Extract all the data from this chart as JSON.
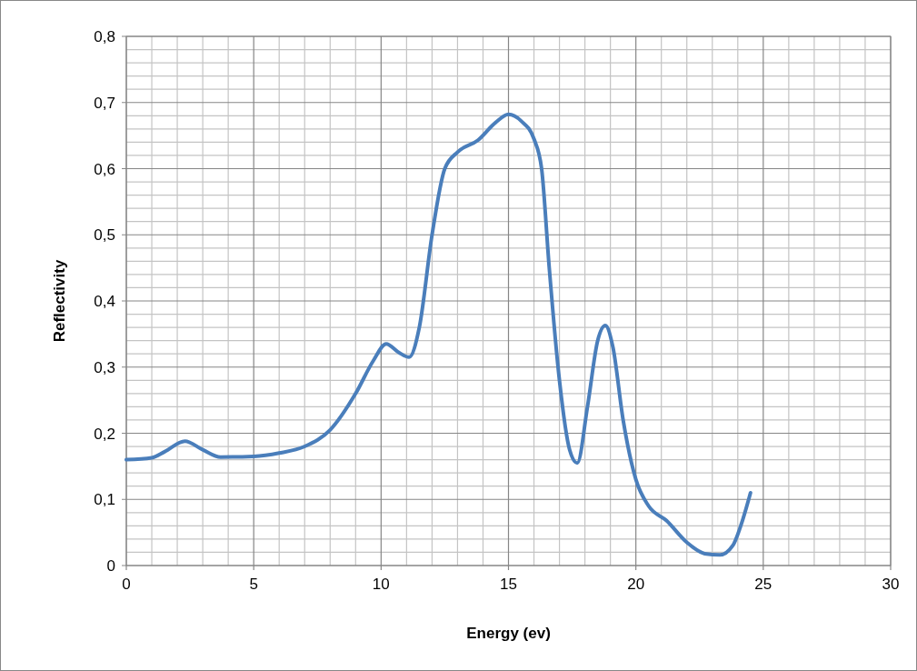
{
  "chart_data": {
    "type": "line",
    "xlabel": "Energy (ev)",
    "ylabel": "Reflectivity",
    "xlim": [
      0,
      30
    ],
    "xticks": [
      0,
      5,
      10,
      15,
      20,
      25,
      30
    ],
    "ylim": [
      0,
      0.8
    ],
    "yticks": [
      {
        "value": 0,
        "label": "0"
      },
      {
        "value": 0.1,
        "label": "0,1"
      },
      {
        "value": 0.2,
        "label": "0,2"
      },
      {
        "value": 0.3,
        "label": "0,3"
      },
      {
        "value": 0.4,
        "label": "0,4"
      },
      {
        "value": 0.5,
        "label": "0,5"
      },
      {
        "value": 0.6,
        "label": "0,6"
      },
      {
        "value": 0.7,
        "label": "0,7"
      },
      {
        "value": 0.8,
        "label": "0,8"
      }
    ],
    "grid": true,
    "marker": "none",
    "line_style": "solid",
    "series": [
      {
        "color": "#4a7ebb",
        "x": [
          0,
          1,
          1.5,
          2.3,
          3,
          3.7,
          5,
          6,
          7,
          8,
          9,
          9.7,
          10.2,
          10.7,
          11.1,
          11.5,
          12,
          12.5,
          13,
          13.8,
          14.5,
          15,
          15.5,
          16,
          16.3,
          16.6,
          17,
          17.4,
          17.7,
          18.1,
          18.5,
          18.8,
          19.1,
          19.5,
          20,
          20.5,
          21.2,
          22,
          22.7,
          23.3,
          23.8,
          24.2,
          24.5
        ],
        "values": [
          0.16,
          0.163,
          0.172,
          0.188,
          0.175,
          0.164,
          0.165,
          0.17,
          0.18,
          0.205,
          0.26,
          0.31,
          0.335,
          0.322,
          0.315,
          0.36,
          0.5,
          0.6,
          0.625,
          0.643,
          0.67,
          0.682,
          0.672,
          0.645,
          0.6,
          0.45,
          0.28,
          0.175,
          0.155,
          0.24,
          0.34,
          0.363,
          0.33,
          0.22,
          0.13,
          0.09,
          0.068,
          0.035,
          0.018,
          0.016,
          0.03,
          0.07,
          0.11
        ]
      }
    ]
  }
}
